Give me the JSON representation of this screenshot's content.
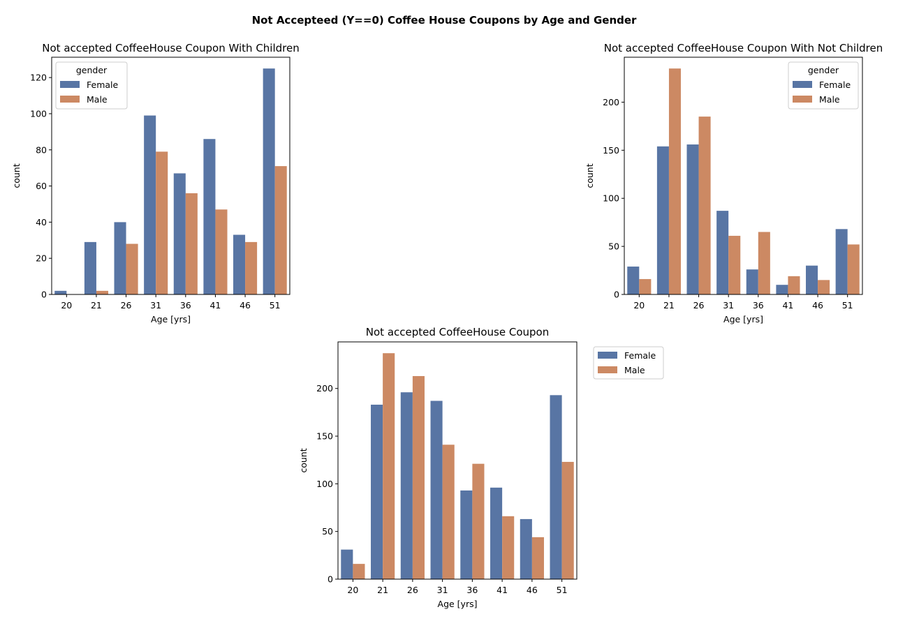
{
  "suptitle": "Not Accepteed (Y==0) Coffee House Coupons by Age and Gender",
  "colors": {
    "Female": "#5875a4",
    "Male": "#cc8963"
  },
  "chart_data": [
    {
      "type": "bar",
      "title": "Not accepted CoffeeHouse Coupon With Children",
      "xlabel": "Age [yrs]",
      "ylabel": "count",
      "categories": [
        "20",
        "21",
        "26",
        "31",
        "36",
        "41",
        "46",
        "51"
      ],
      "series": [
        {
          "name": "Female",
          "values": [
            2,
            29,
            40,
            99,
            67,
            86,
            33,
            125
          ]
        },
        {
          "name": "Male",
          "values": [
            0,
            2,
            28,
            79,
            56,
            47,
            29,
            71
          ]
        }
      ],
      "ylim": [
        0,
        131.25
      ],
      "yticks": [
        0,
        20,
        40,
        60,
        80,
        100,
        120
      ],
      "grid": false,
      "legend": {
        "title": "gender",
        "placement": "upper left"
      }
    },
    {
      "type": "bar",
      "title": "Not accepted CoffeeHouse Coupon With Not Children",
      "xlabel": "Age [yrs]",
      "ylabel": "count",
      "categories": [
        "20",
        "21",
        "26",
        "31",
        "36",
        "41",
        "46",
        "51"
      ],
      "series": [
        {
          "name": "Female",
          "values": [
            29,
            154,
            156,
            87,
            26,
            10,
            30,
            68
          ]
        },
        {
          "name": "Male",
          "values": [
            16,
            235,
            185,
            61,
            65,
            19,
            15,
            52
          ]
        }
      ],
      "ylim": [
        0,
        246.75
      ],
      "yticks": [
        0,
        50,
        100,
        150,
        200
      ],
      "grid": false,
      "legend": {
        "title": "gender",
        "placement": "upper right"
      }
    },
    {
      "type": "bar",
      "title": "Not accepted CoffeeHouse Coupon",
      "xlabel": "Age [yrs]",
      "ylabel": "count",
      "categories": [
        "20",
        "21",
        "26",
        "31",
        "36",
        "41",
        "46",
        "51"
      ],
      "series": [
        {
          "name": "Female",
          "values": [
            31,
            183,
            196,
            187,
            93,
            96,
            63,
            193
          ]
        },
        {
          "name": "Male",
          "values": [
            16,
            237,
            213,
            141,
            121,
            66,
            44,
            123
          ]
        }
      ],
      "ylim": [
        0,
        248.85
      ],
      "yticks": [
        0,
        50,
        100,
        150,
        200
      ],
      "grid": false,
      "legend": {
        "title": "",
        "placement": "outside upper right"
      }
    }
  ]
}
